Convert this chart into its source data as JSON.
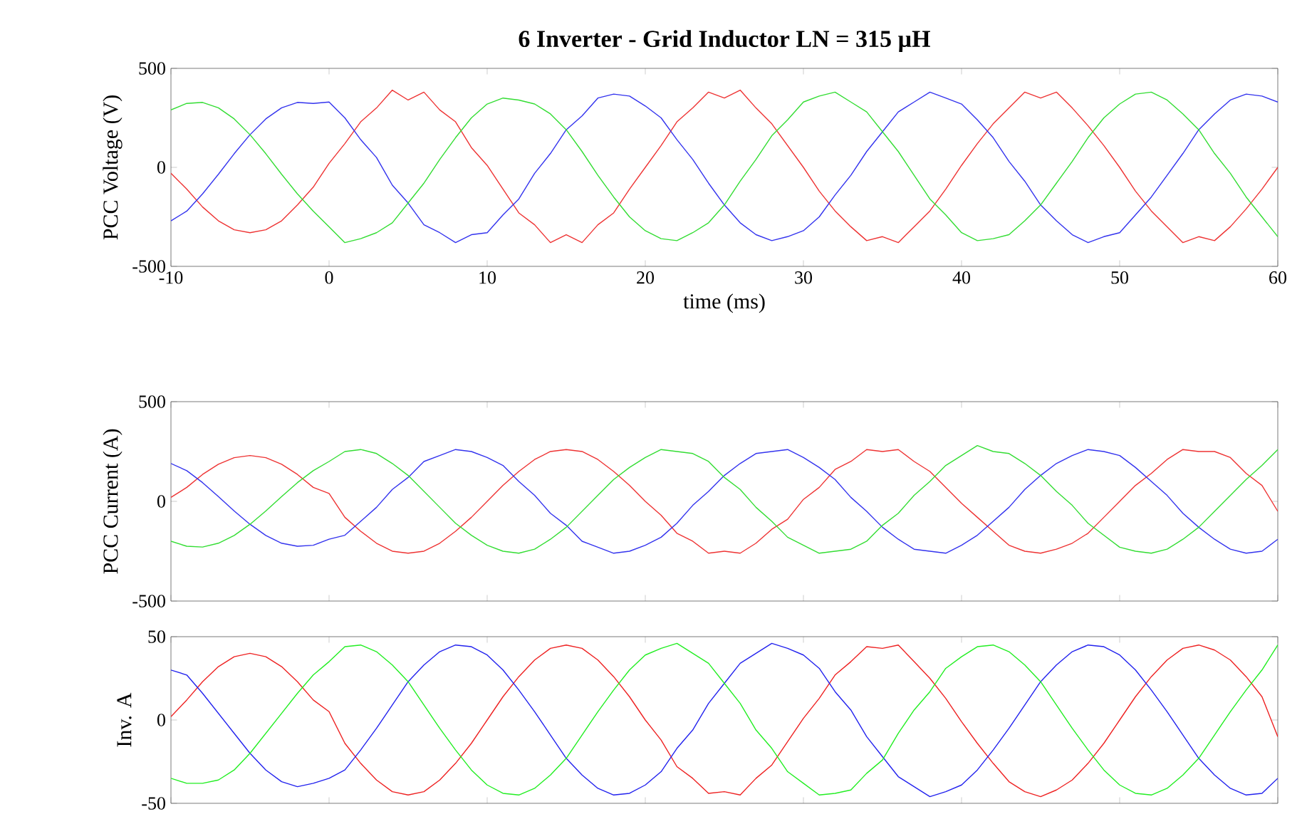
{
  "chart_data": [
    {
      "type": "line",
      "title": "6 Inverter - Grid Inductor LN = 315 µH",
      "xlabel": "time (ms)",
      "ylabel": "PCC Voltage (V)",
      "x": [
        -10,
        -9,
        -8,
        -7,
        -6,
        -5,
        -4,
        -3,
        -2,
        -1,
        0,
        1,
        2,
        3,
        4,
        5,
        6,
        7,
        8,
        9,
        10,
        11,
        12,
        13,
        14,
        15,
        16,
        17,
        18,
        19,
        20,
        21,
        22,
        23,
        24,
        25,
        26,
        27,
        28,
        29,
        30,
        31,
        32,
        33,
        34,
        35,
        36,
        37,
        38,
        39,
        40,
        41,
        42,
        43,
        44,
        45,
        46,
        47,
        48,
        49,
        50,
        51,
        52,
        53,
        54,
        55,
        56,
        57,
        58,
        59,
        60
      ],
      "xlim": [
        -10,
        60
      ],
      "xticks": [
        -10,
        0,
        10,
        20,
        30,
        40,
        50,
        60
      ],
      "ylim": [
        -500,
        500
      ],
      "yticks": [
        -500,
        0,
        500
      ],
      "series": [
        {
          "color": "#ee3333",
          "values": [
            -30,
            -110,
            -200,
            -270,
            -315,
            -330,
            -315,
            -270,
            -190,
            -100,
            20,
            120,
            230,
            300,
            390,
            340,
            380,
            290,
            230,
            100,
            10,
            -110,
            -230,
            -290,
            -380,
            -340,
            -380,
            -290,
            -230,
            -110,
            0,
            110,
            230,
            300,
            380,
            350,
            390,
            300,
            220,
            110,
            0,
            -120,
            -220,
            -300,
            -370,
            -350,
            -380,
            -300,
            -220,
            -110,
            10,
            120,
            220,
            300,
            380,
            350,
            380,
            300,
            210,
            110,
            0,
            -120,
            -220,
            -300,
            -380,
            -350,
            -370,
            -300,
            -210,
            -110,
            0
          ]
        },
        {
          "color": "#3333ee",
          "values": [
            -270,
            -221,
            -134,
            -35,
            69,
            165,
            245,
            301,
            328,
            323,
            330,
            250,
            140,
            50,
            -90,
            -180,
            -290,
            -330,
            -380,
            -340,
            -330,
            -240,
            -160,
            -30,
            70,
            190,
            260,
            350,
            370,
            360,
            310,
            250,
            140,
            40,
            -80,
            -190,
            -280,
            -340,
            -370,
            -350,
            -320,
            -250,
            -140,
            -40,
            80,
            180,
            280,
            330,
            380,
            350,
            320,
            240,
            150,
            30,
            -70,
            -190,
            -270,
            -340,
            -380,
            -350,
            -330,
            -240,
            -150,
            -40,
            70,
            190,
            270,
            340,
            370,
            360,
            330
          ]
        },
        {
          "color": "#33dd33",
          "values": [
            290,
            323,
            328,
            301,
            245,
            165,
            69,
            -35,
            -134,
            -221,
            -300,
            -380,
            -360,
            -330,
            -280,
            -180,
            -80,
            40,
            150,
            250,
            320,
            350,
            340,
            320,
            270,
            190,
            80,
            -40,
            -150,
            -250,
            -320,
            -360,
            -370,
            -330,
            -280,
            -190,
            -70,
            40,
            160,
            240,
            330,
            360,
            380,
            330,
            280,
            180,
            80,
            -40,
            -160,
            -240,
            -330,
            -370,
            -360,
            -340,
            -270,
            -190,
            -80,
            30,
            150,
            250,
            320,
            370,
            380,
            340,
            270,
            190,
            70,
            -30,
            -150,
            -250,
            -350
          ]
        }
      ]
    },
    {
      "type": "line",
      "ylabel": "PCC Current (A)",
      "tick_labels": "y",
      "x": [
        -10,
        -9,
        -8,
        -7,
        -6,
        -5,
        -4,
        -3,
        -2,
        -1,
        0,
        1,
        2,
        3,
        4,
        5,
        6,
        7,
        8,
        9,
        10,
        11,
        12,
        13,
        14,
        15,
        16,
        17,
        18,
        19,
        20,
        21,
        22,
        23,
        24,
        25,
        26,
        27,
        28,
        29,
        30,
        31,
        32,
        33,
        34,
        35,
        36,
        37,
        38,
        39,
        40,
        41,
        42,
        43,
        44,
        45,
        46,
        47,
        48,
        49,
        50,
        51,
        52,
        53,
        54,
        55,
        56,
        57,
        58,
        59,
        60
      ],
      "xlim": [
        -10,
        60
      ],
      "xticks": [
        -10,
        0,
        10,
        20,
        30,
        40,
        50,
        60
      ],
      "ylim": [
        -500,
        500
      ],
      "yticks": [
        -500,
        0,
        500
      ],
      "series": [
        {
          "color": "#ee3333",
          "values": [
            20,
            70,
            135,
            186,
            219,
            230,
            219,
            186,
            135,
            70,
            40,
            -80,
            -150,
            -210,
            -250,
            -260,
            -250,
            -210,
            -150,
            -80,
            0,
            80,
            150,
            210,
            250,
            260,
            250,
            210,
            150,
            80,
            0,
            -70,
            -160,
            -200,
            -260,
            -250,
            -260,
            -210,
            -140,
            -90,
            10,
            70,
            160,
            200,
            260,
            250,
            260,
            200,
            150,
            70,
            -10,
            -80,
            -150,
            -220,
            -250,
            -260,
            -240,
            -210,
            -160,
            -80,
            0,
            80,
            140,
            210,
            260,
            250,
            250,
            220,
            140,
            80,
            -50
          ]
        },
        {
          "color": "#3333ee",
          "values": [
            190,
            154,
            94,
            24,
            -48,
            -115,
            -171,
            -210,
            -225,
            -220,
            -190,
            -170,
            -100,
            -30,
            60,
            120,
            200,
            230,
            260,
            250,
            220,
            180,
            100,
            30,
            -60,
            -120,
            -200,
            -230,
            -260,
            -250,
            -220,
            -180,
            -110,
            -20,
            50,
            130,
            190,
            240,
            250,
            260,
            220,
            170,
            110,
            20,
            -50,
            -130,
            -190,
            -240,
            -250,
            -260,
            -220,
            -170,
            -100,
            -30,
            60,
            130,
            190,
            230,
            260,
            250,
            230,
            170,
            100,
            30,
            -60,
            -130,
            -190,
            -240,
            -260,
            -250,
            -190
          ]
        },
        {
          "color": "#33dd33",
          "values": [
            -200,
            -225,
            -229,
            -210,
            -171,
            -115,
            -48,
            24,
            94,
            154,
            200,
            250,
            260,
            240,
            190,
            130,
            50,
            -30,
            -110,
            -170,
            -220,
            -250,
            -260,
            -240,
            -190,
            -130,
            -50,
            30,
            110,
            170,
            220,
            260,
            250,
            240,
            200,
            120,
            60,
            -30,
            -100,
            -180,
            -220,
            -260,
            -250,
            -240,
            -200,
            -120,
            -60,
            30,
            100,
            180,
            230,
            280,
            250,
            240,
            190,
            130,
            50,
            -20,
            -110,
            -170,
            -230,
            -250,
            -260,
            -240,
            -190,
            -130,
            -50,
            30,
            110,
            180,
            260
          ]
        }
      ]
    },
    {
      "type": "line",
      "ylabel": "Inv. A",
      "tick_labels": "y",
      "x": [
        -10,
        -9,
        -8,
        -7,
        -6,
        -5,
        -4,
        -3,
        -2,
        -1,
        0,
        1,
        2,
        3,
        4,
        5,
        6,
        7,
        8,
        9,
        10,
        11,
        12,
        13,
        14,
        15,
        16,
        17,
        18,
        19,
        20,
        21,
        22,
        23,
        24,
        25,
        26,
        27,
        28,
        29,
        30,
        31,
        32,
        33,
        34,
        35,
        36,
        37,
        38,
        39,
        40,
        41,
        42,
        43,
        44,
        45,
        46,
        47,
        48,
        49,
        50,
        51,
        52,
        53,
        54,
        55,
        56,
        57,
        58,
        59,
        60
      ],
      "xlim": [
        -10,
        60
      ],
      "xticks": [
        -10,
        0,
        10,
        20,
        30,
        40,
        50,
        60
      ],
      "ylim": [
        -50,
        50
      ],
      "yticks": [
        -50,
        0,
        50
      ],
      "series": [
        {
          "color": "#ee2222",
          "values": [
            2,
            12,
            23,
            32,
            38,
            40,
            38,
            32,
            23,
            12,
            5,
            -14,
            -26,
            -36,
            -43,
            -45,
            -43,
            -36,
            -26,
            -14,
            0,
            14,
            26,
            36,
            43,
            45,
            43,
            36,
            26,
            14,
            0,
            -12,
            -28,
            -35,
            -44,
            -43,
            -45,
            -35,
            -27,
            -13,
            1,
            13,
            27,
            35,
            44,
            43,
            45,
            35,
            25,
            13,
            -1,
            -14,
            -26,
            -37,
            -43,
            -46,
            -42,
            -36,
            -26,
            -14,
            0,
            14,
            26,
            36,
            43,
            45,
            42,
            36,
            26,
            14,
            -10
          ]
        },
        {
          "color": "#2222ee",
          "values": [
            30,
            27,
            16,
            4,
            -8,
            -20,
            -30,
            -37,
            -40,
            -38,
            -35,
            -30,
            -18,
            -5,
            9,
            23,
            33,
            41,
            45,
            44,
            39,
            30,
            18,
            5,
            -9,
            -23,
            -33,
            -41,
            -45,
            -44,
            -39,
            -31,
            -17,
            -6,
            10,
            22,
            34,
            40,
            46,
            43,
            39,
            31,
            17,
            6,
            -10,
            -22,
            -34,
            -40,
            -46,
            -43,
            -39,
            -30,
            -18,
            -5,
            9,
            23,
            33,
            41,
            45,
            44,
            39,
            30,
            18,
            5,
            -9,
            -23,
            -33,
            -41,
            -45,
            -44,
            -35
          ]
        },
        {
          "color": "#22ee22",
          "values": [
            -35,
            -38,
            -38,
            -36,
            -30,
            -20,
            -8,
            4,
            16,
            27,
            35,
            44,
            45,
            41,
            33,
            23,
            9,
            -5,
            -18,
            -30,
            -39,
            -44,
            -45,
            -41,
            -33,
            -23,
            -9,
            5,
            18,
            30,
            39,
            43,
            46,
            40,
            34,
            22,
            10,
            -6,
            -17,
            -31,
            -38,
            -45,
            -44,
            -42,
            -32,
            -24,
            -8,
            6,
            17,
            31,
            38,
            44,
            45,
            41,
            33,
            23,
            9,
            -5,
            -18,
            -30,
            -39,
            -44,
            -45,
            -41,
            -33,
            -23,
            -9,
            5,
            18,
            30,
            45
          ]
        }
      ]
    }
  ]
}
